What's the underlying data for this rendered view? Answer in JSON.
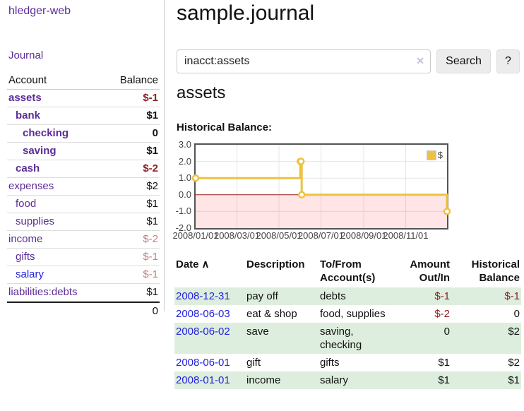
{
  "app": {
    "title": "hledger-web"
  },
  "sidebar": {
    "nav_journal": "Journal",
    "accounts": {
      "headers": {
        "account": "Account",
        "balance": "Balance"
      },
      "rows": [
        {
          "name": "assets",
          "depth": 1,
          "bold": true,
          "link": "purple",
          "value": "$-1",
          "value_color": "neg-strong"
        },
        {
          "name": "bank",
          "depth": 2,
          "bold": true,
          "link": "purple",
          "value": "$1",
          "value_color": ""
        },
        {
          "name": "checking",
          "depth": 3,
          "bold": true,
          "link": "purple",
          "value": "0",
          "value_color": ""
        },
        {
          "name": "saving",
          "depth": 3,
          "bold": true,
          "link": "purple",
          "value": "$1",
          "value_color": ""
        },
        {
          "name": "cash",
          "depth": 2,
          "bold": true,
          "link": "purple",
          "value": "$-2",
          "value_color": "neg-strong"
        },
        {
          "name": "expenses",
          "depth": 1,
          "bold": false,
          "link": "purple",
          "value": "$2",
          "value_color": ""
        },
        {
          "name": "food",
          "depth": 2,
          "bold": false,
          "link": "purple",
          "value": "$1",
          "value_color": ""
        },
        {
          "name": "supplies",
          "depth": 2,
          "bold": false,
          "link": "purple",
          "value": "$1",
          "value_color": ""
        },
        {
          "name": "income",
          "depth": 1,
          "bold": false,
          "link": "purple",
          "value": "$-2",
          "value_color": "neg-soft"
        },
        {
          "name": "gifts",
          "depth": 2,
          "bold": false,
          "link": "purple",
          "value": "$-1",
          "value_color": "neg-soft"
        },
        {
          "name": "salary",
          "depth": 2,
          "bold": false,
          "link": "blue",
          "value": "$-1",
          "value_color": "neg-soft"
        },
        {
          "name": "liabilities:debts",
          "depth": 1,
          "bold": false,
          "link": "purple",
          "value": "$1",
          "value_color": ""
        }
      ],
      "total": "0"
    }
  },
  "main": {
    "title": "sample.journal",
    "search": {
      "value": "inacct:assets",
      "clear_icon": "✕",
      "button": "Search",
      "help_button": "?"
    },
    "account_heading": "assets",
    "chart_label": "Historical Balance:",
    "txn_table": {
      "headers": {
        "date": "Date",
        "sort_arrow": "∧",
        "description": "Description",
        "accounts": "To/From Account(s)",
        "amount": "Amount Out/In",
        "balance": "Historical Balance"
      },
      "rows": [
        {
          "date": "2008-12-31",
          "description": "pay off",
          "accounts": "debts",
          "amount": "$-1",
          "balance": "$-1"
        },
        {
          "date": "2008-06-03",
          "description": "eat & shop",
          "accounts": "food, supplies",
          "amount": "$-2",
          "balance": "0"
        },
        {
          "date": "2008-06-02",
          "description": "save",
          "accounts": "saving, checking",
          "amount": "0",
          "balance": "$2"
        },
        {
          "date": "2008-06-01",
          "description": "gift",
          "accounts": "gifts",
          "amount": "$1",
          "balance": "$2"
        },
        {
          "date": "2008-01-01",
          "description": "income",
          "accounts": "salary",
          "amount": "$1",
          "balance": "$1"
        }
      ]
    }
  },
  "chart_data": {
    "type": "line",
    "title": "Historical Balance",
    "style": "steps",
    "series": [
      {
        "name": "$",
        "color": "#EDC240",
        "points": [
          {
            "date": "2008-01-01",
            "day": 0,
            "value": 1
          },
          {
            "date": "2008-06-01",
            "day": 152,
            "value": 2
          },
          {
            "date": "2008-06-02",
            "day": 153,
            "value": 2
          },
          {
            "date": "2008-06-03",
            "day": 154,
            "value": 0
          },
          {
            "date": "2008-12-31",
            "day": 365,
            "value": -1
          }
        ]
      }
    ],
    "x_ticks": [
      {
        "label": "2008/01/01",
        "day": 0
      },
      {
        "label": "2008/03/01",
        "day": 60
      },
      {
        "label": "2008/05/01",
        "day": 121
      },
      {
        "label": "2008/07/01",
        "day": 182
      },
      {
        "label": "2008/09/01",
        "day": 244
      },
      {
        "label": "2008/11/01",
        "day": 305
      }
    ],
    "y_ticks": [
      "3.0",
      "2.0",
      "1.0",
      "0.0",
      "-1.0",
      "-2.0"
    ],
    "ylim": [
      -2,
      3
    ],
    "xlim_days": [
      0,
      365
    ],
    "grid": true,
    "legend_position": "top-right",
    "negative_region_fill": "rgba(255,0,0,0.10)",
    "zero_line_color": "#992222",
    "grid_color": "#e6e6e6"
  },
  "colors": {
    "accent_purple": "#5a2d96",
    "link_blue": "#2222dd",
    "negative_strong": "#8e2026",
    "negative_soft": "#c28082",
    "row_stripe_green": "#deeede",
    "series_gold": "#EDC240"
  }
}
